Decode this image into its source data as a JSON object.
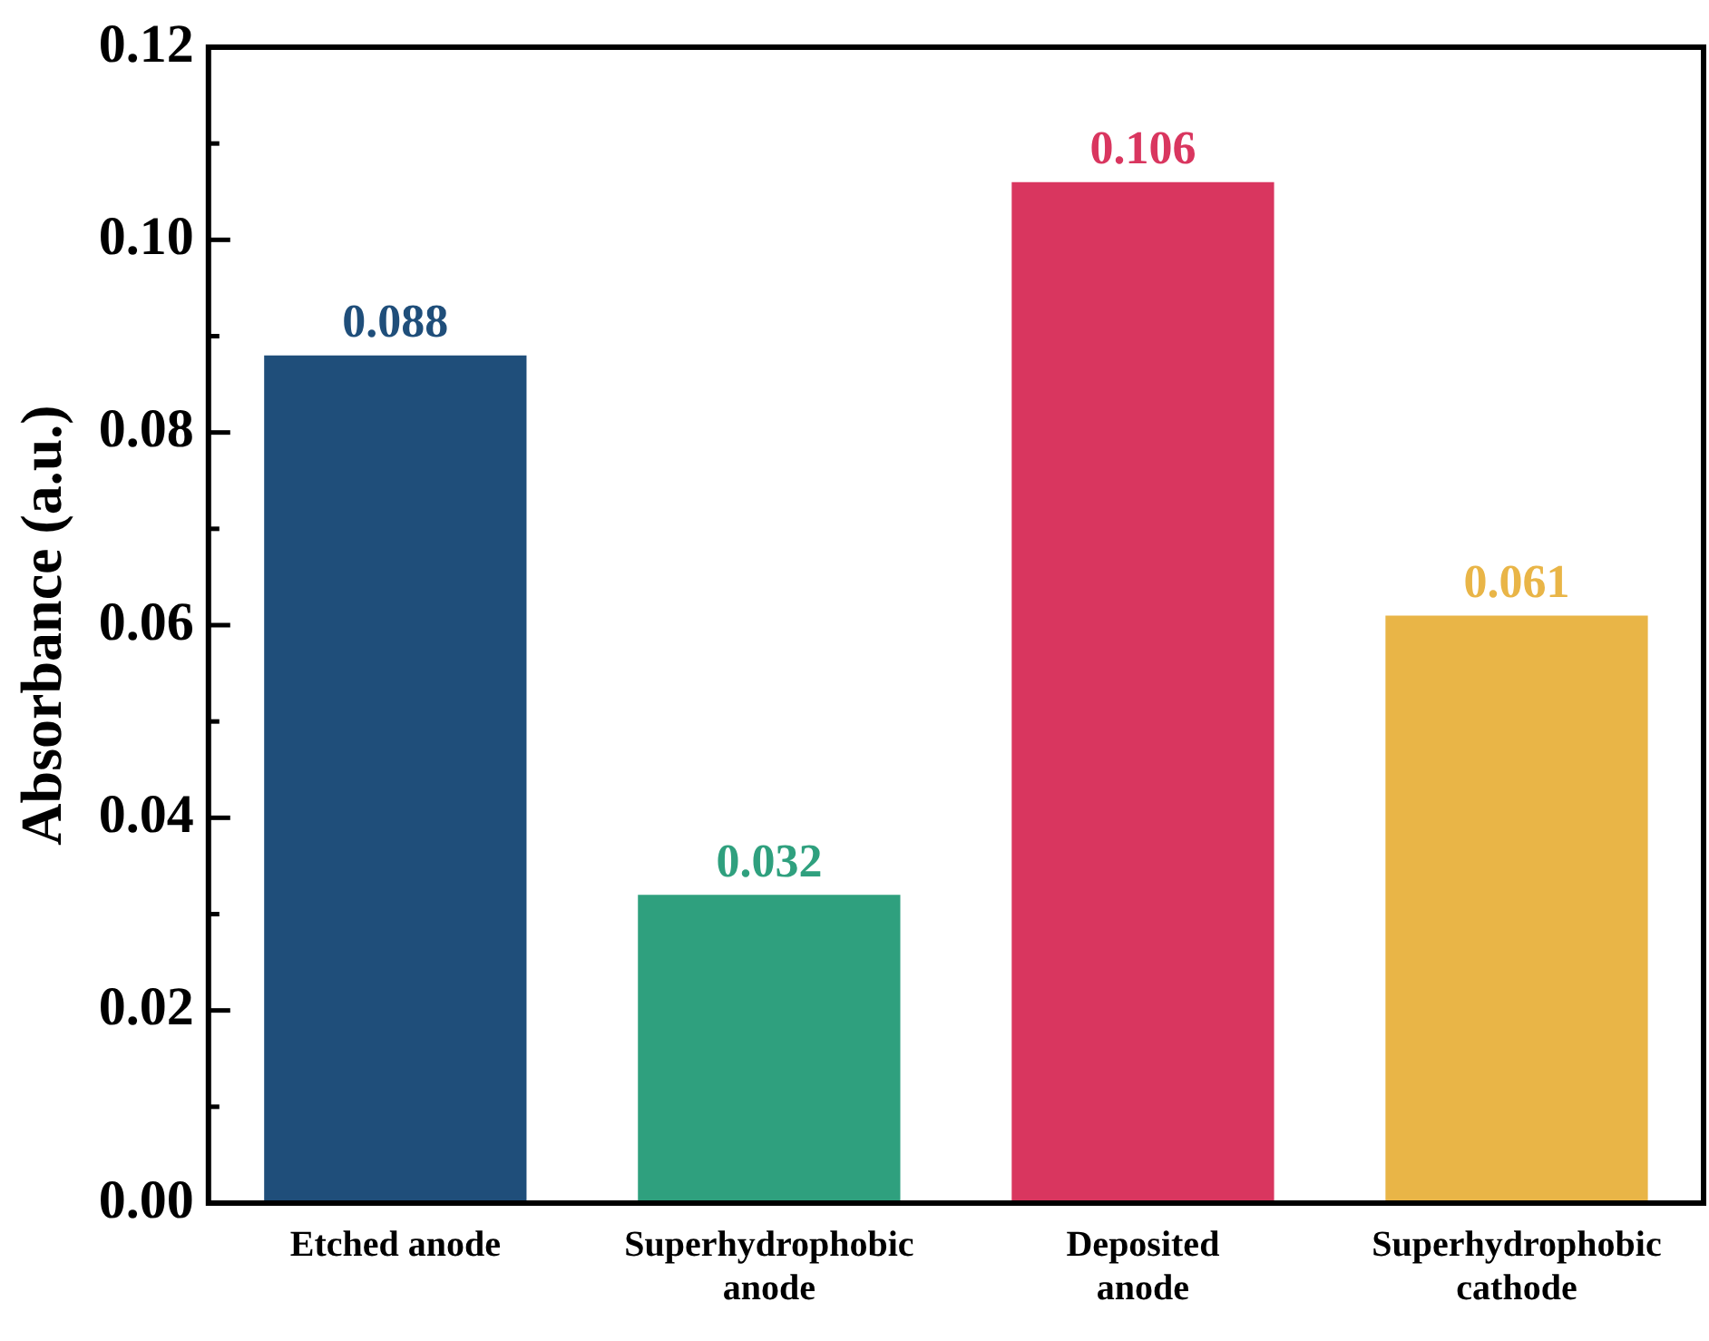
{
  "chart_data": {
    "type": "bar",
    "ylabel": "Absorbance (a.u.)",
    "categories": [
      "Etched anode",
      "Superhydrophobic\nanode",
      "Deposited\nanode",
      "Superhydrophobic\ncathode"
    ],
    "values": [
      0.088,
      0.032,
      0.106,
      0.061
    ],
    "colors": [
      "#1f4e7a",
      "#2fa07e",
      "#d9365f",
      "#e9b547"
    ],
    "ylim": [
      0,
      0.12
    ],
    "yticks": [
      "0.00",
      {
        "value": 0.01,
        "label": null
      },
      "0.02",
      {
        "value": 0.03,
        "label": null
      },
      "0.04",
      {
        "value": 0.05,
        "label": null
      },
      "0.06",
      {
        "value": 0.07,
        "label": null
      },
      "0.08",
      {
        "value": 0.09,
        "label": null
      },
      "0.10",
      {
        "value": 0.11,
        "label": null
      },
      "0.12"
    ],
    "data_labels": true,
    "grid": false,
    "legend": false
  }
}
